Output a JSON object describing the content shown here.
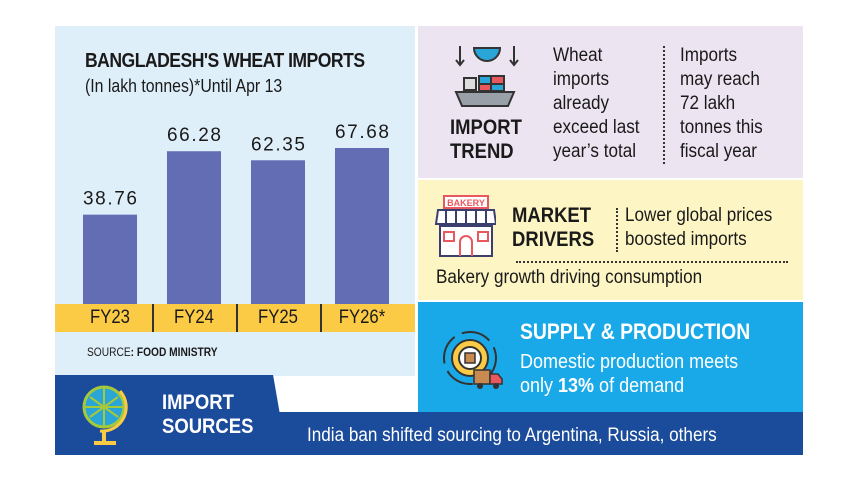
{
  "chart_data": {
    "type": "bar",
    "title": "BANGLADESH'S WHEAT IMPORTS",
    "subtitle": "(In lakh tonnes)*Until Apr 13",
    "categories": [
      "FY23",
      "FY24",
      "FY25",
      "FY26*"
    ],
    "values": [
      38.76,
      66.28,
      62.35,
      67.68
    ],
    "value_labels": [
      "38.76",
      "66.28",
      "62.35",
      "67.68"
    ],
    "bar_color": "#626db3",
    "axis_band_color": "#fccb45",
    "grid": false
  },
  "source": {
    "label": "SOURCE",
    "value": ": FOOD MINISTRY"
  },
  "import_trend": {
    "heading_line1": "IMPORT",
    "heading_line2": "TREND",
    "icon": "cargo-ship-icon",
    "point1": [
      "Wheat",
      "imports",
      "already",
      "exceed last",
      "year’s total"
    ],
    "point2": [
      "Imports",
      "may reach",
      "72 lakh",
      "tonnes this",
      "fiscal year"
    ]
  },
  "market_drivers": {
    "heading_line1": "MARKET",
    "heading_line2": "DRIVERS",
    "icon": "bakery-shop-icon",
    "icon_sign": "BAKERY",
    "point1": [
      "Lower global prices",
      "boosted imports"
    ],
    "point2": "Bakery growth driving consumption"
  },
  "supply": {
    "heading": "SUPPLY & PRODUCTION",
    "icon": "gear-truck-icon",
    "line1": "Domestic production meets",
    "line2_pre": "only ",
    "line2_bold": "13%",
    "line2_post": " of demand"
  },
  "import_sources": {
    "heading_line1": "IMPORT",
    "heading_line2": "SOURCES",
    "icon": "globe-icon",
    "text": "India ban shifted sourcing to Argentina, Russia, others"
  },
  "colors": {
    "left_bg": "#dfeffa",
    "trend_bg": "#ece4f1",
    "market_bg": "#fdf6c4",
    "supply_bg": "#1aa9e8",
    "sources_bg": "#1b4b9b"
  }
}
